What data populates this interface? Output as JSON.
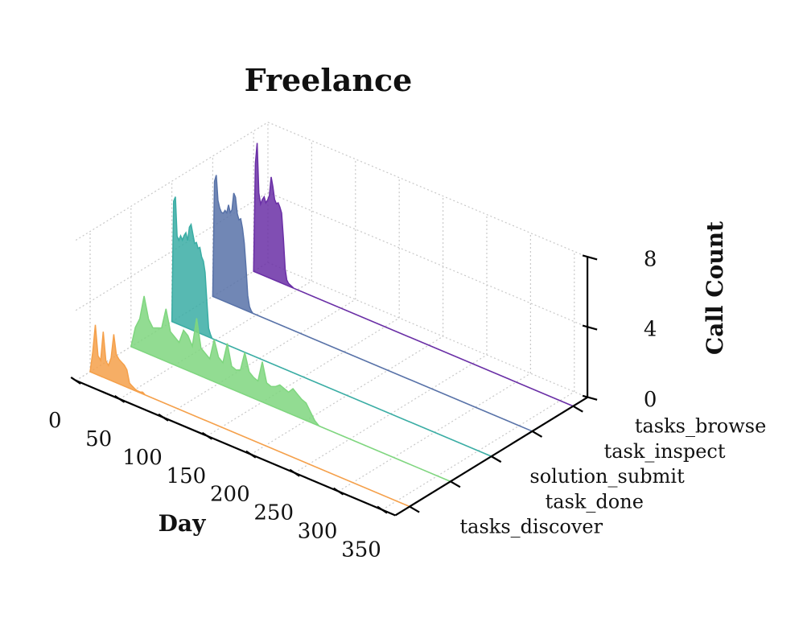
{
  "chart_data": {
    "type": "area",
    "projection": "3d-ridgeline",
    "title": "Freelance",
    "xlabel": "Day",
    "zlabel": "Call Count",
    "xlim": [
      0,
      365
    ],
    "zlim": [
      0,
      8
    ],
    "x_ticks": [
      "0",
      "50",
      "100",
      "150",
      "200",
      "250",
      "300",
      "350"
    ],
    "z_ticks": [
      "0",
      "4",
      "8"
    ],
    "series": [
      {
        "name": "tasks_discover",
        "color": "#f5a04a",
        "x": [
          0,
          3,
          6,
          9,
          12,
          15,
          18,
          21,
          24,
          27,
          30,
          33,
          36,
          39,
          42,
          45,
          48,
          51,
          54,
          57,
          60,
          63
        ],
        "values": [
          0,
          1.2,
          2.8,
          1.1,
          0.9,
          2.6,
          1.0,
          0.8,
          1.3,
          2.7,
          1.6,
          1.4,
          1.3,
          1.2,
          1.0,
          0.3,
          0.2,
          0.1,
          0.05,
          0.05,
          0.1,
          0
        ]
      },
      {
        "name": "task_done",
        "color": "#7fd67f",
        "x": [
          0,
          5,
          10,
          15,
          20,
          25,
          30,
          35,
          40,
          45,
          50,
          55,
          60,
          65,
          70,
          75,
          80,
          85,
          90,
          95,
          100,
          105,
          110,
          115,
          120,
          125,
          130,
          135,
          140,
          145,
          150,
          155,
          160,
          165,
          170,
          175,
          180,
          185,
          190,
          195,
          200,
          205,
          210,
          215
        ],
        "values": [
          0,
          1.2,
          1.8,
          3.2,
          2.0,
          1.6,
          1.7,
          1.8,
          3.0,
          1.8,
          1.6,
          1.4,
          2.2,
          2.0,
          1.5,
          3.2,
          1.6,
          1.4,
          1.2,
          2.4,
          1.5,
          1.3,
          2.5,
          1.3,
          1.2,
          1.3,
          2.4,
          1.4,
          1.2,
          1.1,
          2.3,
          1.2,
          1.1,
          1.2,
          1.4,
          1.3,
          1.2,
          1.5,
          1.3,
          1.1,
          1.0,
          0.6,
          0.2,
          0
        ]
      },
      {
        "name": "solution_submit",
        "color": "#3aada4",
        "x": [
          0,
          2,
          4,
          6,
          8,
          10,
          12,
          14,
          16,
          18,
          20,
          22,
          24,
          26,
          28,
          30,
          32,
          34,
          36,
          38,
          40,
          42,
          44,
          46
        ],
        "values": [
          0,
          6.9,
          7.2,
          5.0,
          4.8,
          5.1,
          4.9,
          5.2,
          5.4,
          5.0,
          5.8,
          6.0,
          5.5,
          5.0,
          5.1,
          4.8,
          4.9,
          4.4,
          4.2,
          3.6,
          2.0,
          0.5,
          0.2,
          0
        ]
      },
      {
        "name": "task_inspect",
        "color": "#5872a8",
        "x": [
          0,
          2,
          4,
          6,
          8,
          10,
          12,
          14,
          16,
          18,
          20,
          22,
          24,
          26,
          28,
          30,
          32,
          34,
          36,
          38,
          40,
          42,
          44,
          46
        ],
        "values": [
          0,
          6.6,
          7.0,
          5.6,
          5.2,
          5.0,
          5.0,
          5.2,
          5.1,
          5.6,
          5.2,
          5.4,
          6.4,
          6.2,
          5.3,
          5.0,
          5.1,
          4.6,
          3.8,
          2.5,
          0.9,
          0.3,
          0.1,
          0
        ]
      },
      {
        "name": "tasks_browse",
        "color": "#6a2fa6",
        "x": [
          0,
          2,
          4,
          6,
          8,
          10,
          12,
          14,
          16,
          18,
          20,
          22,
          24,
          26,
          28,
          30,
          32,
          34,
          36,
          38,
          40,
          42,
          44,
          46
        ],
        "values": [
          0,
          6.2,
          7.4,
          4.6,
          4.0,
          4.3,
          4.5,
          4.2,
          4.4,
          4.7,
          5.8,
          5.3,
          4.6,
          4.4,
          4.5,
          4.3,
          4.0,
          2.6,
          0.9,
          0.3,
          0.15,
          0.1,
          0.05,
          0
        ]
      }
    ]
  }
}
